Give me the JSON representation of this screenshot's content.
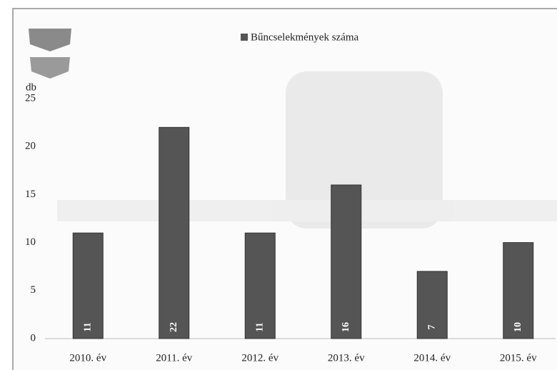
{
  "chart_data": {
    "type": "bar",
    "y_label": "db",
    "categories": [
      "2010. év",
      "2011. év",
      "2012. év",
      "2013. év",
      "2014. év",
      "2015. év"
    ],
    "series": [
      {
        "name": "Bűncselekmények száma",
        "color": "#555555",
        "values": [
          11,
          22,
          11,
          16,
          7,
          10
        ]
      }
    ],
    "ylim": [
      0,
      25
    ],
    "yticks": [
      0,
      5,
      10,
      15,
      20,
      25
    ],
    "grid": false,
    "legend": "top"
  }
}
